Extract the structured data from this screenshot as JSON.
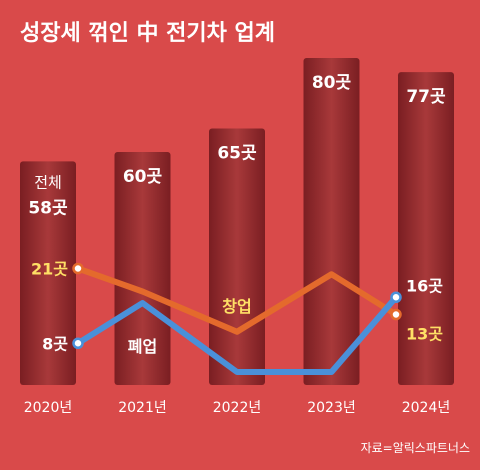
{
  "title": "성장세 꺾인 中 전기차 업계",
  "source": "자료=알릭스파트너스",
  "colors": {
    "background": "#d94a4a",
    "bar_dark": "#7a1e22",
    "bar_mid": "#a8393a",
    "startups_line": "#e46a2c",
    "closures_line": "#4a90d9",
    "label_yellow": "#ffe066"
  },
  "chart_data": {
    "type": "bar+line",
    "categories": [
      "2020년",
      "2021년",
      "2022년",
      "2023년",
      "2024년"
    ],
    "total": {
      "name": "전체",
      "values": [
        58,
        60,
        65,
        80,
        77
      ],
      "labels": [
        "58곳",
        "60곳",
        "65곳",
        "80곳",
        "77곳"
      ]
    },
    "series": [
      {
        "name": "창업",
        "values": [
          21,
          17,
          10,
          20,
          13
        ],
        "labels": [
          "21곳",
          "",
          "",
          "",
          "13곳"
        ]
      },
      {
        "name": "폐업",
        "values": [
          8,
          15,
          3,
          3,
          16
        ],
        "labels": [
          "8곳",
          "",
          "",
          "",
          "16곳"
        ]
      }
    ]
  }
}
